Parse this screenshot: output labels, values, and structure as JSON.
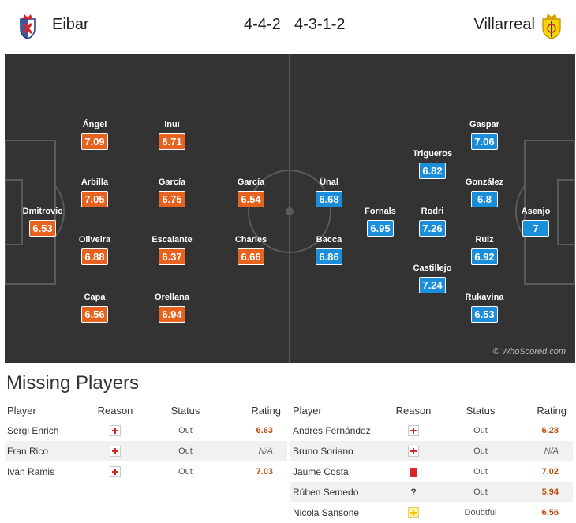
{
  "header": {
    "home_team": "Eibar",
    "away_team": "Villarreal",
    "home_formation": "4-4-2",
    "away_formation": "4-3-1-2",
    "home_crest_icon": "eibar-crest-icon",
    "away_crest_icon": "villarreal-crest-icon"
  },
  "colors": {
    "home_rating": "#e7621f",
    "away_rating": "#1a8edb",
    "pitch": "#333333",
    "rating_text_missing": "#b84b0d"
  },
  "pitch": {
    "watermark": "© WhoScored.com",
    "home_players": [
      {
        "name": "Ángel",
        "rating": "7.09"
      },
      {
        "name": "Inui",
        "rating": "6.71"
      },
      {
        "name": "Arbilla",
        "rating": "7.05"
      },
      {
        "name": "García",
        "rating": "6.75"
      },
      {
        "name": "García",
        "rating": "6.54"
      },
      {
        "name": "Dmitrovic",
        "rating": "6.53"
      },
      {
        "name": "Oliveira",
        "rating": "6.88"
      },
      {
        "name": "Escalante",
        "rating": "6.37"
      },
      {
        "name": "Charles",
        "rating": "6.66"
      },
      {
        "name": "Capa",
        "rating": "6.56"
      },
      {
        "name": "Orellana",
        "rating": "6.94"
      }
    ],
    "away_players": [
      {
        "name": "Gaspar",
        "rating": "7.06"
      },
      {
        "name": "Trigueros",
        "rating": "6.82"
      },
      {
        "name": "Ünal",
        "rating": "6.68"
      },
      {
        "name": "González",
        "rating": "6.8"
      },
      {
        "name": "Fornals",
        "rating": "6.95"
      },
      {
        "name": "Rodri",
        "rating": "7.26"
      },
      {
        "name": "Asenjo",
        "rating": "7"
      },
      {
        "name": "Bacca",
        "rating": "6.86"
      },
      {
        "name": "Ruiz",
        "rating": "6.92"
      },
      {
        "name": "Castillejo",
        "rating": "7.24"
      },
      {
        "name": "Rukavina",
        "rating": "6.53"
      }
    ]
  },
  "missing": {
    "title": "Missing Players",
    "columns": {
      "player": "Player",
      "reason": "Reason",
      "status": "Status",
      "rating": "Rating"
    },
    "home": [
      {
        "player": "Sergi Enrich",
        "reason_icon": "injury-icon",
        "status": "Out",
        "rating": "6.63"
      },
      {
        "player": "Fran Rico",
        "reason_icon": "injury-icon",
        "status": "Out",
        "rating": "N/A"
      },
      {
        "player": "Iván Ramis",
        "reason_icon": "injury-icon",
        "status": "Out",
        "rating": "7.03"
      }
    ],
    "away": [
      {
        "player": "Andrés Fernández",
        "reason_icon": "injury-icon",
        "status": "Out",
        "rating": "6.28"
      },
      {
        "player": "Bruno Soriano",
        "reason_icon": "injury-icon",
        "status": "Out",
        "rating": "N/A"
      },
      {
        "player": "Jaume Costa",
        "reason_icon": "red-card-icon",
        "status": "Out",
        "rating": "7.02"
      },
      {
        "player": "Rúben Semedo",
        "reason_icon": "unknown-icon",
        "reason_text": "?",
        "status": "Out",
        "rating": "5.94"
      },
      {
        "player": "Nicola Sansone",
        "reason_icon": "doubtful-icon",
        "status": "Doubtful",
        "rating": "6.56"
      }
    ]
  }
}
